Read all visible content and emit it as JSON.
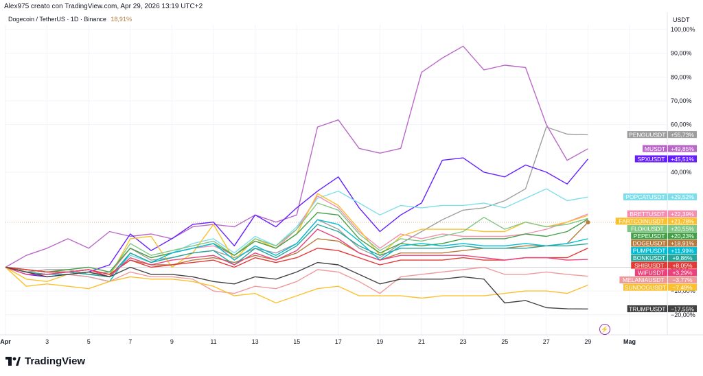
{
  "header": {
    "author_line": "Alex975 creato con TradingView.com, Apr 29, 2026 13:19 UTC+2",
    "symbol": "Dogecoin / TetherUS · 1D · Binance",
    "symbol_change": "18,91%",
    "unit": "USDT"
  },
  "logo": {
    "text": "TradingView",
    "icon": "tradingview-logo-icon"
  },
  "bolt_icon": "⚡",
  "chart_data": {
    "type": "line",
    "title": "Dogecoin / TetherUS · 1D · Binance",
    "ylabel": "USDT",
    "y_unit": "%",
    "ylim": [
      -24,
      104
    ],
    "yticks": [
      {
        "v": 100,
        "label": "100,00%"
      },
      {
        "v": 90,
        "label": "90,00%"
      },
      {
        "v": 80,
        "label": "80,00%"
      },
      {
        "v": 70,
        "label": "70,00%"
      },
      {
        "v": 60,
        "label": "60,00%"
      },
      {
        "v": 40,
        "label": "40,00%"
      },
      {
        "v": 0,
        "label": "0,00%"
      },
      {
        "v": -10,
        "label": "−10,00%"
      },
      {
        "v": -20,
        "label": "−20,00%"
      }
    ],
    "xticks": [
      {
        "i": 0,
        "label": "Apr"
      },
      {
        "i": 2,
        "label": "3"
      },
      {
        "i": 4,
        "label": "5"
      },
      {
        "i": 6,
        "label": "7"
      },
      {
        "i": 8,
        "label": "9"
      },
      {
        "i": 10,
        "label": "11"
      },
      {
        "i": 12,
        "label": "13"
      },
      {
        "i": 14,
        "label": "15"
      },
      {
        "i": 16,
        "label": "17"
      },
      {
        "i": 18,
        "label": "19"
      },
      {
        "i": 20,
        "label": "21"
      },
      {
        "i": 22,
        "label": "23"
      },
      {
        "i": 24,
        "label": "25"
      },
      {
        "i": 26,
        "label": "27"
      },
      {
        "i": 28,
        "label": "29"
      },
      {
        "i": 30,
        "label": "Mag"
      }
    ],
    "x_dates": [
      "Apr 1",
      "Apr 2",
      "Apr 3",
      "Apr 4",
      "Apr 5",
      "Apr 6",
      "Apr 7",
      "Apr 8",
      "Apr 9",
      "Apr 10",
      "Apr 11",
      "Apr 12",
      "Apr 13",
      "Apr 14",
      "Apr 15",
      "Apr 16",
      "Apr 17",
      "Apr 18",
      "Apr 19",
      "Apr 20",
      "Apr 21",
      "Apr 22",
      "Apr 23",
      "Apr 24",
      "Apr 25",
      "Apr 26",
      "Apr 27",
      "Apr 28",
      "Apr 29"
    ],
    "reference_line": 18.91,
    "series": [
      {
        "name": "PENGUUSDT",
        "label": "+55,73%",
        "color": "#9e9e9e",
        "values": [
          0,
          -2,
          -1,
          -1,
          -3,
          -2,
          8,
          3,
          4,
          6,
          7,
          4,
          8,
          6,
          10,
          20,
          16,
          8,
          4,
          10,
          15,
          20,
          24,
          25,
          28,
          33,
          59,
          56,
          55.73
        ]
      },
      {
        "name": "MUSDT",
        "label": "+49,85%",
        "color": "#ba68c8",
        "values": [
          0,
          5,
          8,
          12,
          8,
          15,
          13,
          14,
          12,
          17,
          18,
          17,
          22,
          19,
          22,
          59,
          62,
          50,
          48,
          50,
          82,
          88,
          93,
          83,
          85,
          84,
          60,
          45,
          49.85
        ]
      },
      {
        "name": "SPXUSDT",
        "label": "+45,51%",
        "color": "#651fff",
        "values": [
          0,
          -3,
          -4,
          -3,
          -2,
          1,
          14,
          7,
          12,
          18,
          19,
          9,
          22,
          17,
          25,
          32,
          38,
          25,
          15,
          22,
          27,
          45,
          46,
          40,
          38,
          43,
          40,
          35,
          45.51
        ]
      },
      {
        "name": "POPCATUSDT",
        "label": "+29,52%",
        "color": "#80deea",
        "values": [
          0,
          -2,
          -3,
          -2,
          -3,
          -4,
          5,
          2,
          6,
          10,
          12,
          6,
          13,
          9,
          17,
          29,
          32,
          27,
          22,
          26,
          25,
          26,
          26,
          27,
          25,
          29,
          33,
          28,
          29.52
        ]
      },
      {
        "name": "BRETTUSDT",
        "label": "+22,39%",
        "color": "#f48fb1",
        "values": [
          0,
          -2,
          -3,
          -2,
          -1,
          -3,
          8,
          4,
          6,
          8,
          9,
          5,
          11,
          8,
          16,
          30,
          25,
          15,
          8,
          14,
          12,
          14,
          13,
          13,
          13,
          14,
          16,
          19,
          22.39
        ]
      },
      {
        "name": "FARTCOINUSDT",
        "label": "+21,78%",
        "color": "#fbc02d",
        "values": [
          0,
          -5,
          -6,
          -3,
          -2,
          -4,
          12,
          13,
          0,
          6,
          18,
          3,
          12,
          8,
          14,
          31,
          26,
          16,
          5,
          13,
          16,
          16,
          16,
          15,
          15,
          19,
          17,
          19,
          21.78
        ]
      },
      {
        "name": "FLOKIUSDT",
        "label": "+20,55%",
        "color": "#81c784",
        "values": [
          0,
          -1,
          -2,
          -2,
          -1,
          -3,
          10,
          5,
          7,
          9,
          11,
          5,
          12,
          9,
          16,
          27,
          24,
          14,
          7,
          12,
          11,
          13,
          15,
          21,
          16,
          19,
          17,
          18,
          20.55
        ]
      },
      {
        "name": "PEPEUSDT",
        "label": "+20,23%",
        "color": "#43a047",
        "values": [
          0,
          -1,
          -2,
          -1,
          0,
          -2,
          8,
          4,
          6,
          8,
          10,
          5,
          11,
          8,
          14,
          23,
          22,
          12,
          6,
          10,
          9,
          10,
          12,
          12,
          12,
          14,
          13,
          15,
          20.23
        ]
      },
      {
        "name": "DOGEUSDT",
        "label": "+18,91%",
        "color": "#b77a3c",
        "values": [
          0,
          -1,
          -2,
          -2,
          -1,
          -3,
          3,
          1,
          1,
          3,
          4,
          2,
          5,
          3,
          6,
          12,
          11,
          6,
          3,
          6,
          6,
          6,
          7,
          8,
          8,
          9,
          9,
          10,
          18.91
        ]
      },
      {
        "name": "PUMPUSDT",
        "label": "+11,99%",
        "color": "#00bcd4",
        "values": [
          0,
          -2,
          -3,
          -3,
          -4,
          -6,
          6,
          2,
          6,
          8,
          10,
          3,
          9,
          5,
          10,
          20,
          18,
          11,
          3,
          9,
          10,
          9,
          10,
          9,
          9,
          10,
          9,
          10,
          11.99
        ]
      },
      {
        "name": "BONKUSDT",
        "label": "+9,86%",
        "color": "#26a69a",
        "values": [
          0,
          -2,
          -3,
          -2,
          -3,
          -4,
          6,
          2,
          4,
          6,
          7,
          1,
          8,
          4,
          9,
          18,
          15,
          9,
          5,
          8,
          8,
          8,
          9,
          8,
          8,
          8,
          9,
          9,
          9.86
        ]
      },
      {
        "name": "SHIBUSDT",
        "label": "+8,05%",
        "color": "#e53935",
        "values": [
          0,
          -1,
          -2,
          -2,
          -1,
          -3,
          3,
          0,
          1,
          2,
          3,
          0,
          4,
          2,
          4,
          8,
          7,
          4,
          1,
          3,
          3,
          3,
          4,
          3,
          3,
          4,
          4,
          4,
          8.05
        ]
      },
      {
        "name": "WIFUSDT",
        "label": "+3,29%",
        "color": "#ec407a",
        "values": [
          0,
          -3,
          -3,
          -2,
          -1,
          -4,
          4,
          1,
          3,
          4,
          5,
          1,
          6,
          3,
          7,
          16,
          12,
          6,
          3,
          5,
          5,
          5,
          5,
          4,
          3,
          4,
          4,
          3,
          3.29
        ]
      },
      {
        "name": "MELANIAUSDT",
        "label": "−3,77%",
        "color": "#ef9a9a",
        "values": [
          0,
          -2,
          -4,
          -3,
          -4,
          -6,
          -2,
          -4,
          -4,
          -5,
          -10,
          -11,
          -8,
          -9,
          -6,
          -1,
          -2,
          -6,
          -11,
          -4,
          -3,
          -2,
          -1,
          0,
          -3,
          -3,
          -2,
          -3,
          -3.77
        ]
      },
      {
        "name": "SUNDOGUSDT",
        "label": "−7,49%",
        "color": "#fbc02d",
        "values": [
          0,
          -8,
          -7,
          -8,
          -9,
          -6,
          -4,
          -5,
          -5,
          -6,
          -8,
          -12,
          -11,
          -15,
          -12,
          -9,
          -8,
          -12,
          -12,
          -12,
          -13,
          -12,
          -12,
          -12,
          -11,
          -10,
          -10,
          -11,
          -7.49
        ]
      },
      {
        "name": "TRUMPUSDT",
        "label": "−17,55%",
        "color": "#424242",
        "values": [
          0,
          -2,
          -4,
          -3,
          -2,
          -4,
          0,
          -3,
          -3,
          -4,
          -6,
          -7,
          -4,
          -5,
          -2,
          2,
          1,
          -3,
          -7,
          -5,
          -5,
          -5,
          -4,
          -5,
          -15,
          -14,
          -17,
          -17.5,
          -17.55
        ]
      }
    ]
  }
}
